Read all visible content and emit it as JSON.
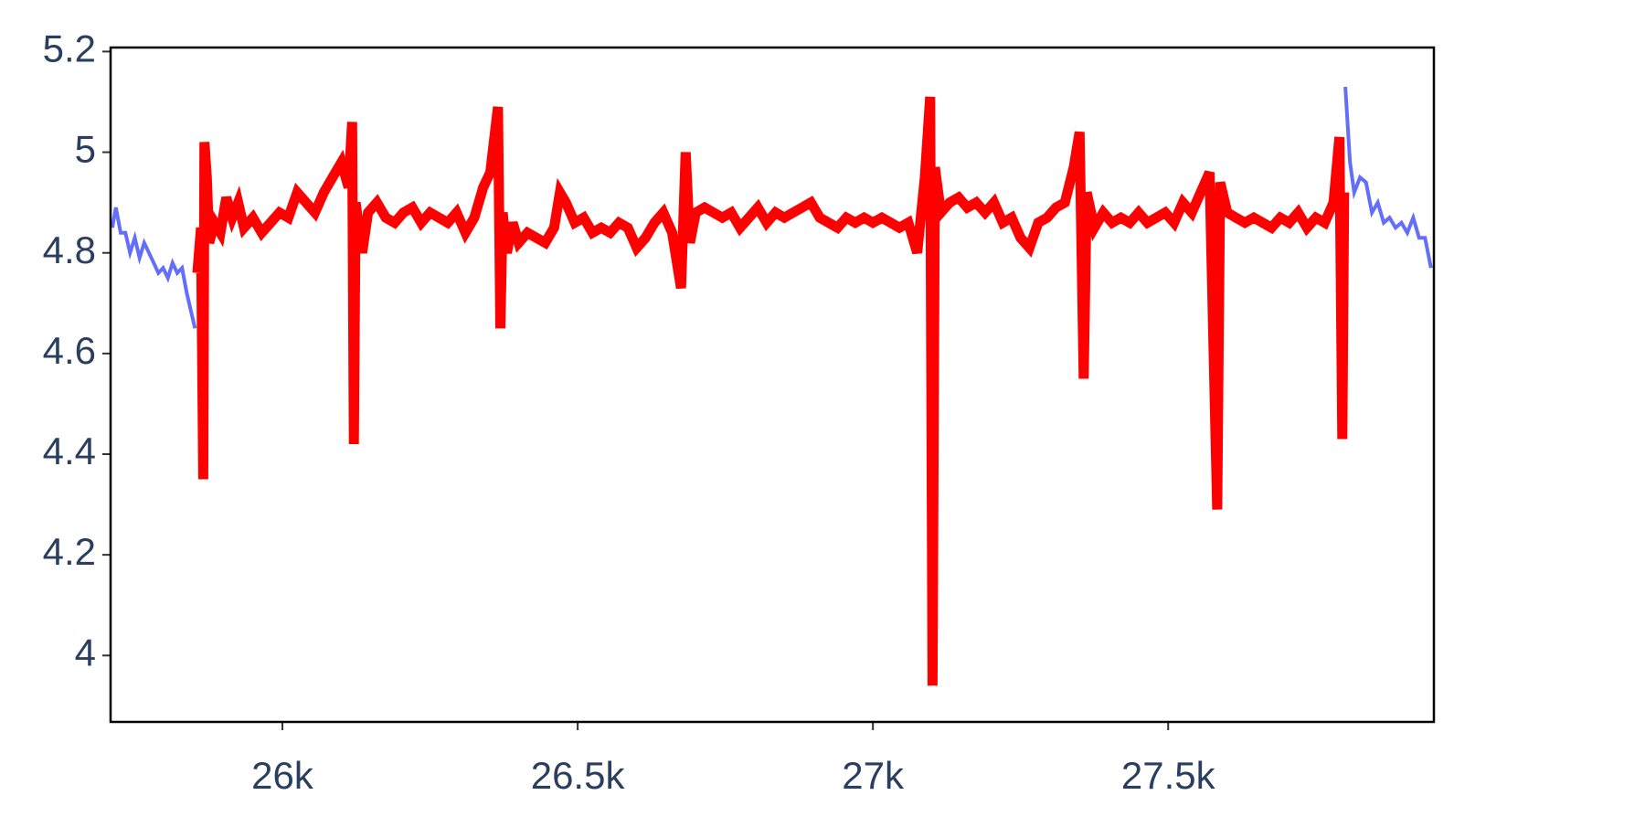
{
  "chart_data": {
    "type": "line",
    "xlim": [
      25709,
      27950
    ],
    "ylim": [
      3.868,
      5.208
    ],
    "xticks": [
      {
        "value": 26000,
        "label": "26k"
      },
      {
        "value": 26500,
        "label": "26.5k"
      },
      {
        "value": 27000,
        "label": "27k"
      },
      {
        "value": 27500,
        "label": "27.5k"
      }
    ],
    "yticks": [
      4,
      4.2,
      4.4,
      4.6,
      4.8,
      5,
      5.2
    ],
    "grid": false,
    "series": [
      {
        "color": "#636efa",
        "x": [
          25712,
          25718,
          25726,
          25734,
          25742,
          25750,
          25758,
          25766,
          25774,
          25782,
          25790,
          25798,
          25806,
          25814,
          25822,
          25830,
          25838,
          25846,
          25852,
          null,
          27800,
          27808,
          27815,
          27825,
          27835,
          27845,
          27855,
          27865,
          27875,
          27885,
          27895,
          27905,
          27915,
          27925,
          27935,
          27945
        ],
        "values": [
          4.85,
          4.89,
          4.84,
          4.84,
          4.8,
          4.83,
          4.79,
          4.82,
          4.8,
          4.78,
          4.76,
          4.77,
          4.75,
          4.78,
          4.76,
          4.77,
          4.72,
          4.68,
          4.65,
          null,
          5.13,
          4.98,
          4.92,
          4.95,
          4.94,
          4.88,
          4.9,
          4.86,
          4.87,
          4.85,
          4.86,
          4.84,
          4.87,
          4.83,
          4.83,
          4.77
        ]
      },
      {
        "color": "#ff0000",
        "x": [
          25856,
          25862,
          25866,
          25868,
          25872,
          25876,
          25885,
          25895,
          25905,
          25915,
          25925,
          25935,
          25950,
          25965,
          25980,
          25995,
          26010,
          26025,
          26040,
          26055,
          26070,
          26085,
          26100,
          26112,
          26118,
          26121,
          26124,
          26135,
          26145,
          26160,
          26175,
          26190,
          26205,
          26220,
          26235,
          26250,
          26265,
          26280,
          26295,
          26310,
          26325,
          26340,
          26352,
          26365,
          26369,
          26373,
          26380,
          26390,
          26400,
          26415,
          26430,
          26445,
          26460,
          26470,
          26480,
          26495,
          26510,
          26525,
          26540,
          26555,
          26570,
          26585,
          26600,
          26615,
          26630,
          26645,
          26660,
          26675,
          26683,
          26690,
          26700,
          26715,
          26730,
          26745,
          26760,
          26775,
          26790,
          26805,
          26820,
          26835,
          26850,
          26865,
          26880,
          26895,
          26910,
          26925,
          26940,
          26955,
          26970,
          26985,
          27000,
          27015,
          27030,
          27045,
          27060,
          27075,
          27088,
          27097,
          27101,
          27105,
          27115,
          27130,
          27145,
          27160,
          27175,
          27190,
          27205,
          27220,
          27235,
          27250,
          27265,
          27280,
          27295,
          27310,
          27325,
          27340,
          27350,
          27357,
          27362,
          27375,
          27390,
          27405,
          27420,
          27435,
          27450,
          27465,
          27480,
          27495,
          27510,
          27525,
          27540,
          27555,
          27570,
          27583,
          27588,
          27600,
          27615,
          27630,
          27645,
          27660,
          27675,
          27690,
          27705,
          27720,
          27735,
          27750,
          27765,
          27780,
          27790,
          27795,
          27798
        ],
        "values": [
          4.76,
          4.85,
          4.35,
          5.02,
          4.95,
          4.82,
          4.86,
          4.84,
          4.91,
          4.87,
          4.9,
          4.85,
          4.87,
          4.84,
          4.86,
          4.88,
          4.87,
          4.92,
          4.9,
          4.88,
          4.92,
          4.95,
          4.98,
          4.93,
          5.06,
          4.42,
          4.9,
          4.8,
          4.88,
          4.9,
          4.87,
          4.86,
          4.88,
          4.89,
          4.86,
          4.88,
          4.87,
          4.86,
          4.88,
          4.84,
          4.87,
          4.93,
          4.96,
          5.09,
          4.65,
          4.88,
          4.8,
          4.86,
          4.82,
          4.84,
          4.83,
          4.82,
          4.85,
          4.92,
          4.9,
          4.86,
          4.87,
          4.84,
          4.85,
          4.84,
          4.86,
          4.85,
          4.81,
          4.83,
          4.86,
          4.88,
          4.84,
          4.73,
          5.0,
          4.82,
          4.88,
          4.89,
          4.88,
          4.87,
          4.88,
          4.85,
          4.87,
          4.89,
          4.86,
          4.88,
          4.87,
          4.88,
          4.89,
          4.9,
          4.87,
          4.86,
          4.85,
          4.87,
          4.86,
          4.87,
          4.86,
          4.87,
          4.86,
          4.85,
          4.86,
          4.8,
          4.95,
          5.11,
          3.94,
          4.97,
          4.88,
          4.9,
          4.91,
          4.89,
          4.9,
          4.88,
          4.9,
          4.86,
          4.87,
          4.83,
          4.81,
          4.86,
          4.87,
          4.89,
          4.9,
          4.97,
          5.04,
          4.55,
          4.92,
          4.85,
          4.88,
          4.86,
          4.87,
          4.86,
          4.88,
          4.86,
          4.87,
          4.88,
          4.86,
          4.9,
          4.88,
          4.92,
          4.96,
          4.29,
          4.94,
          4.88,
          4.87,
          4.86,
          4.87,
          4.86,
          4.85,
          4.87,
          4.86,
          4.88,
          4.85,
          4.87,
          4.86,
          4.9,
          5.03,
          4.43,
          4.92
        ]
      }
    ]
  }
}
